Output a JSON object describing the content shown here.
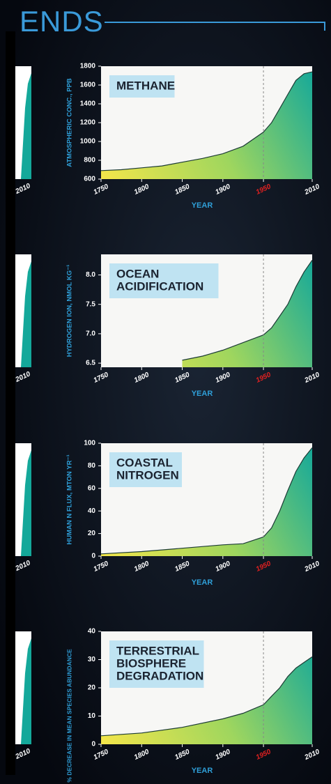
{
  "header": {
    "title": "ENDS"
  },
  "left_panel_labels": [
    "2010",
    "2010",
    "2010",
    "2010"
  ],
  "chart_data": [
    {
      "type": "area",
      "title": [
        "METHANE"
      ],
      "y_label": "ATMOSPHERIC CONC., PPB",
      "x_label": "YEAR",
      "x": [
        1750,
        1775,
        1800,
        1825,
        1850,
        1875,
        1900,
        1925,
        1950,
        1960,
        1970,
        1980,
        1990,
        2000,
        2010
      ],
      "values": [
        690,
        700,
        720,
        740,
        780,
        820,
        870,
        950,
        1100,
        1200,
        1350,
        1500,
        1650,
        1720,
        1740
      ],
      "xlim": [
        1750,
        2010
      ],
      "xticks": [
        1750,
        1800,
        1850,
        1900,
        1950,
        2010
      ],
      "ylim": [
        600,
        1800
      ],
      "yticks": [
        600,
        800,
        1000,
        1200,
        1400,
        1600,
        1800
      ],
      "highlight_x": 1950,
      "colors": {
        "fill": [
          "#f4e64a",
          "#9fd65e",
          "#14a89a"
        ],
        "line": "#1c3b35",
        "highlight": "#e02020",
        "axis_title": "#2f9fd8"
      }
    },
    {
      "type": "area",
      "title": [
        "OCEAN",
        "ACIDIFICATION"
      ],
      "y_label": "HYDROGEN ION, NMOL KG⁻¹",
      "x_label": "YEAR",
      "x": [
        1850,
        1875,
        1900,
        1925,
        1950,
        1960,
        1970,
        1980,
        1990,
        2000,
        2010
      ],
      "values": [
        6.55,
        6.62,
        6.72,
        6.85,
        6.98,
        7.1,
        7.3,
        7.5,
        7.8,
        8.05,
        8.25
      ],
      "xlim": [
        1750,
        2010
      ],
      "xticks": [
        1750,
        1800,
        1850,
        1900,
        1950,
        2010
      ],
      "ylim": [
        6.43,
        8.35
      ],
      "yticks": [
        6.5,
        {
          "value": 7,
          "label": "7.0"
        },
        7.5,
        {
          "value": 8,
          "label": "8.0"
        }
      ],
      "highlight_x": 1950,
      "colors": {
        "fill": [
          "#f4e64a",
          "#9fd65e",
          "#14a89a"
        ],
        "line": "#1c3b35",
        "highlight": "#e02020",
        "axis_title": "#2f9fd8"
      }
    },
    {
      "type": "area",
      "title": [
        "COASTAL",
        "NITROGEN"
      ],
      "y_label": "HUMAN N FLUX, MTON YR⁻¹",
      "x_label": "YEAR",
      "x": [
        1750,
        1800,
        1850,
        1900,
        1925,
        1950,
        1960,
        1970,
        1980,
        1990,
        2000,
        2010
      ],
      "values": [
        2,
        4,
        7,
        10,
        11,
        17,
        25,
        40,
        58,
        75,
        87,
        96
      ],
      "xlim": [
        1750,
        2010
      ],
      "xticks": [
        1750,
        1800,
        1850,
        1900,
        1950,
        2010
      ],
      "ylim": [
        0,
        100
      ],
      "yticks": [
        0,
        20,
        40,
        60,
        80,
        100
      ],
      "highlight_x": 1950,
      "colors": {
        "fill": [
          "#f4e64a",
          "#9fd65e",
          "#14a89a"
        ],
        "line": "#1c3b35",
        "highlight": "#e02020",
        "axis_title": "#2f9fd8"
      }
    },
    {
      "type": "area",
      "title": [
        "TERRESTRIAL",
        "BIOSPHERE",
        "DEGRADATION"
      ],
      "y_label": "% DECREASE IN MEAN SPECIES ABUNDANCE",
      "x_label": "YEAR",
      "x": [
        1750,
        1800,
        1850,
        1900,
        1925,
        1950,
        1960,
        1970,
        1980,
        1990,
        2000,
        2010
      ],
      "values": [
        3,
        4,
        6,
        9,
        11,
        14,
        17,
        20,
        24,
        27,
        29,
        31
      ],
      "xlim": [
        1750,
        2010
      ],
      "xticks": [
        1750,
        1800,
        1850,
        1900,
        1950,
        2010
      ],
      "ylim": [
        0,
        40
      ],
      "yticks": [
        0,
        10,
        20,
        30,
        40
      ],
      "highlight_x": 1950,
      "colors": {
        "fill": [
          "#f4e64a",
          "#9fd65e",
          "#14a89a"
        ],
        "line": "#1c3b35",
        "highlight": "#e02020",
        "axis_title": "#2f9fd8"
      }
    }
  ]
}
